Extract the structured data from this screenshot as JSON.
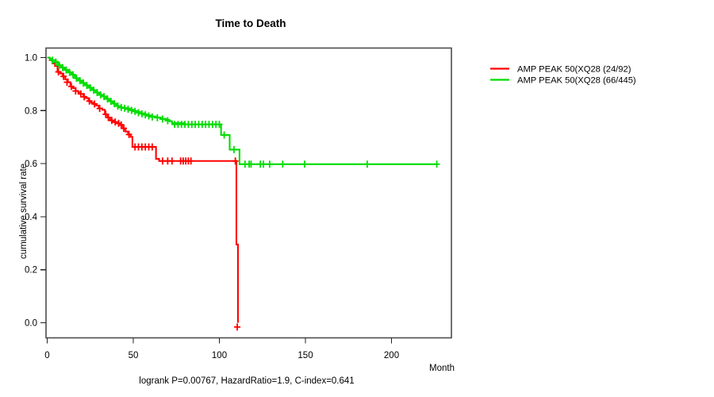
{
  "page": {
    "background_color": "#ffffff",
    "plot_box_color": "#4d4d4d",
    "tick_color": "#222222",
    "text_color": "#000000"
  },
  "chart_data": {
    "type": "line",
    "subtype": "kaplan-meier-step",
    "title": "Time to Death",
    "xlabel": "Month",
    "ylabel": "cumulative survival rate",
    "footer": "logrank P=0.00767, HazardRatio=1.9, C-index=0.641",
    "x_ticks": [
      "0",
      "50",
      "100",
      "150",
      "200"
    ],
    "x_tick_values": [
      0,
      50,
      100,
      150,
      200
    ],
    "y_ticks": [
      "1.0",
      "0.8",
      "0.6",
      "0.4",
      "0.2",
      "0.0"
    ],
    "y_tick_values": [
      1.0,
      0.8,
      0.6,
      0.4,
      0.2,
      0.0
    ],
    "xlim": [
      0,
      234
    ],
    "ylim": [
      0.0,
      1.0
    ],
    "grid": false,
    "legend_position": "right-outside",
    "series": [
      {
        "name": "AMP PEAK 50(XQ28 (24/92)",
        "color": "#ff0000",
        "events_over_total": "24/92",
        "steps": [
          [
            0,
            1.0
          ],
          [
            1.5,
            0.99
          ],
          [
            3,
            0.978
          ],
          [
            4.5,
            0.968
          ],
          [
            6,
            0.946
          ],
          [
            7.5,
            0.94
          ],
          [
            9,
            0.929
          ],
          [
            10.5,
            0.918
          ],
          [
            12,
            0.907
          ],
          [
            13.5,
            0.891
          ],
          [
            15,
            0.885
          ],
          [
            16.5,
            0.874
          ],
          [
            18,
            0.869
          ],
          [
            19.5,
            0.863
          ],
          [
            21,
            0.852
          ],
          [
            22.5,
            0.847
          ],
          [
            24,
            0.836
          ],
          [
            25.5,
            0.83
          ],
          [
            27,
            0.825
          ],
          [
            28.5,
            0.819
          ],
          [
            30,
            0.808
          ],
          [
            32,
            0.803
          ],
          [
            33.5,
            0.786
          ],
          [
            35,
            0.774
          ],
          [
            36.5,
            0.763
          ],
          [
            38.5,
            0.757
          ],
          [
            40.5,
            0.752
          ],
          [
            42.5,
            0.746
          ],
          [
            44,
            0.733
          ],
          [
            45.5,
            0.721
          ],
          [
            47,
            0.71
          ],
          [
            48.5,
            0.701
          ],
          [
            49.5,
            0.663
          ],
          [
            63.2,
            0.618
          ],
          [
            65,
            0.61
          ],
          [
            109.9,
            0.295
          ],
          [
            110.8,
            0.0
          ]
        ],
        "censors": [
          [
            6.5,
            0.946
          ],
          [
            9.5,
            0.929
          ],
          [
            11.5,
            0.907
          ],
          [
            14,
            0.891
          ],
          [
            16.5,
            0.874
          ],
          [
            19.5,
            0.863
          ],
          [
            21.5,
            0.852
          ],
          [
            24.5,
            0.836
          ],
          [
            27.5,
            0.825
          ],
          [
            30.5,
            0.808
          ],
          [
            34,
            0.786
          ],
          [
            35.5,
            0.774
          ],
          [
            37.5,
            0.763
          ],
          [
            39.5,
            0.757
          ],
          [
            41.5,
            0.752
          ],
          [
            43,
            0.746
          ],
          [
            44.5,
            0.733
          ],
          [
            47.5,
            0.71
          ],
          [
            51,
            0.663
          ],
          [
            53,
            0.663
          ],
          [
            55,
            0.663
          ],
          [
            57,
            0.663
          ],
          [
            59,
            0.663
          ],
          [
            61,
            0.663
          ],
          [
            67,
            0.61
          ],
          [
            70,
            0.61
          ],
          [
            72.5,
            0.61
          ],
          [
            77.5,
            0.61
          ],
          [
            79,
            0.61
          ],
          [
            80.5,
            0.61
          ],
          [
            82,
            0.61
          ],
          [
            83.5,
            0.61
          ],
          [
            109.3,
            0.61
          ],
          [
            110.4,
            -0.016
          ]
        ]
      },
      {
        "name": "AMP PEAK 50(XQ28 (66/445)",
        "color": "#00dc00",
        "events_over_total": "66/445",
        "end_month": 226.3,
        "steps": [
          [
            0,
            1.0
          ],
          [
            1.5,
            0.995
          ],
          [
            3,
            0.99
          ],
          [
            4.5,
            0.985
          ],
          [
            6,
            0.976
          ],
          [
            7,
            0.971
          ],
          [
            8,
            0.966
          ],
          [
            9,
            0.962
          ],
          [
            10,
            0.957
          ],
          [
            11,
            0.953
          ],
          [
            12,
            0.948
          ],
          [
            13,
            0.944
          ],
          [
            14,
            0.939
          ],
          [
            15,
            0.935
          ],
          [
            16,
            0.927
          ],
          [
            17,
            0.922
          ],
          [
            18,
            0.918
          ],
          [
            19,
            0.913
          ],
          [
            20,
            0.909
          ],
          [
            21,
            0.904
          ],
          [
            22,
            0.9
          ],
          [
            23,
            0.895
          ],
          [
            24,
            0.891
          ],
          [
            25,
            0.886
          ],
          [
            26,
            0.882
          ],
          [
            27,
            0.877
          ],
          [
            28,
            0.873
          ],
          [
            29,
            0.868
          ],
          [
            30,
            0.864
          ],
          [
            31,
            0.859
          ],
          [
            32,
            0.855
          ],
          [
            33,
            0.853
          ],
          [
            34,
            0.848
          ],
          [
            35,
            0.844
          ],
          [
            36,
            0.839
          ],
          [
            37,
            0.835
          ],
          [
            38,
            0.83
          ],
          [
            39,
            0.826
          ],
          [
            40,
            0.821
          ],
          [
            41,
            0.817
          ],
          [
            42,
            0.812
          ],
          [
            44,
            0.81
          ],
          [
            46,
            0.808
          ],
          [
            48,
            0.803
          ],
          [
            50,
            0.799
          ],
          [
            52,
            0.795
          ],
          [
            54,
            0.79
          ],
          [
            56,
            0.786
          ],
          [
            58,
            0.782
          ],
          [
            60,
            0.778
          ],
          [
            63,
            0.774
          ],
          [
            66,
            0.769
          ],
          [
            69,
            0.765
          ],
          [
            71,
            0.76
          ],
          [
            72.5,
            0.753
          ],
          [
            80,
            0.748
          ],
          [
            101,
            0.708
          ],
          [
            106,
            0.653
          ],
          [
            111.7,
            0.598
          ]
        ],
        "censors": [
          [
            3,
            0.99
          ],
          [
            5,
            0.983
          ],
          [
            7,
            0.971
          ],
          [
            9,
            0.962
          ],
          [
            11,
            0.953
          ],
          [
            13,
            0.944
          ],
          [
            15,
            0.935
          ],
          [
            17,
            0.922
          ],
          [
            19,
            0.913
          ],
          [
            21,
            0.904
          ],
          [
            23,
            0.895
          ],
          [
            25,
            0.886
          ],
          [
            27,
            0.877
          ],
          [
            29,
            0.868
          ],
          [
            31,
            0.859
          ],
          [
            33,
            0.853
          ],
          [
            35,
            0.844
          ],
          [
            37,
            0.835
          ],
          [
            39,
            0.826
          ],
          [
            41,
            0.817
          ],
          [
            43,
            0.812
          ],
          [
            45,
            0.809
          ],
          [
            47,
            0.805
          ],
          [
            49,
            0.801
          ],
          [
            51,
            0.797
          ],
          [
            53,
            0.792
          ],
          [
            55,
            0.788
          ],
          [
            57,
            0.784
          ],
          [
            59,
            0.78
          ],
          [
            61,
            0.776
          ],
          [
            64,
            0.773
          ],
          [
            67,
            0.768
          ],
          [
            70,
            0.762
          ],
          [
            74,
            0.748
          ],
          [
            76,
            0.748
          ],
          [
            78,
            0.748
          ],
          [
            80,
            0.748
          ],
          [
            82,
            0.748
          ],
          [
            84,
            0.748
          ],
          [
            86,
            0.748
          ],
          [
            88,
            0.748
          ],
          [
            90,
            0.748
          ],
          [
            92,
            0.748
          ],
          [
            94,
            0.748
          ],
          [
            96,
            0.748
          ],
          [
            98,
            0.748
          ],
          [
            100,
            0.748
          ],
          [
            102.8,
            0.708
          ],
          [
            108.5,
            0.653
          ],
          [
            114.9,
            0.598
          ],
          [
            117.3,
            0.598
          ],
          [
            118.4,
            0.598
          ],
          [
            123.8,
            0.598
          ],
          [
            125.6,
            0.598
          ],
          [
            129.2,
            0.598
          ],
          [
            136.8,
            0.598
          ],
          [
            149.5,
            0.598
          ],
          [
            185.9,
            0.598
          ],
          [
            226.3,
            0.598
          ]
        ]
      }
    ]
  }
}
